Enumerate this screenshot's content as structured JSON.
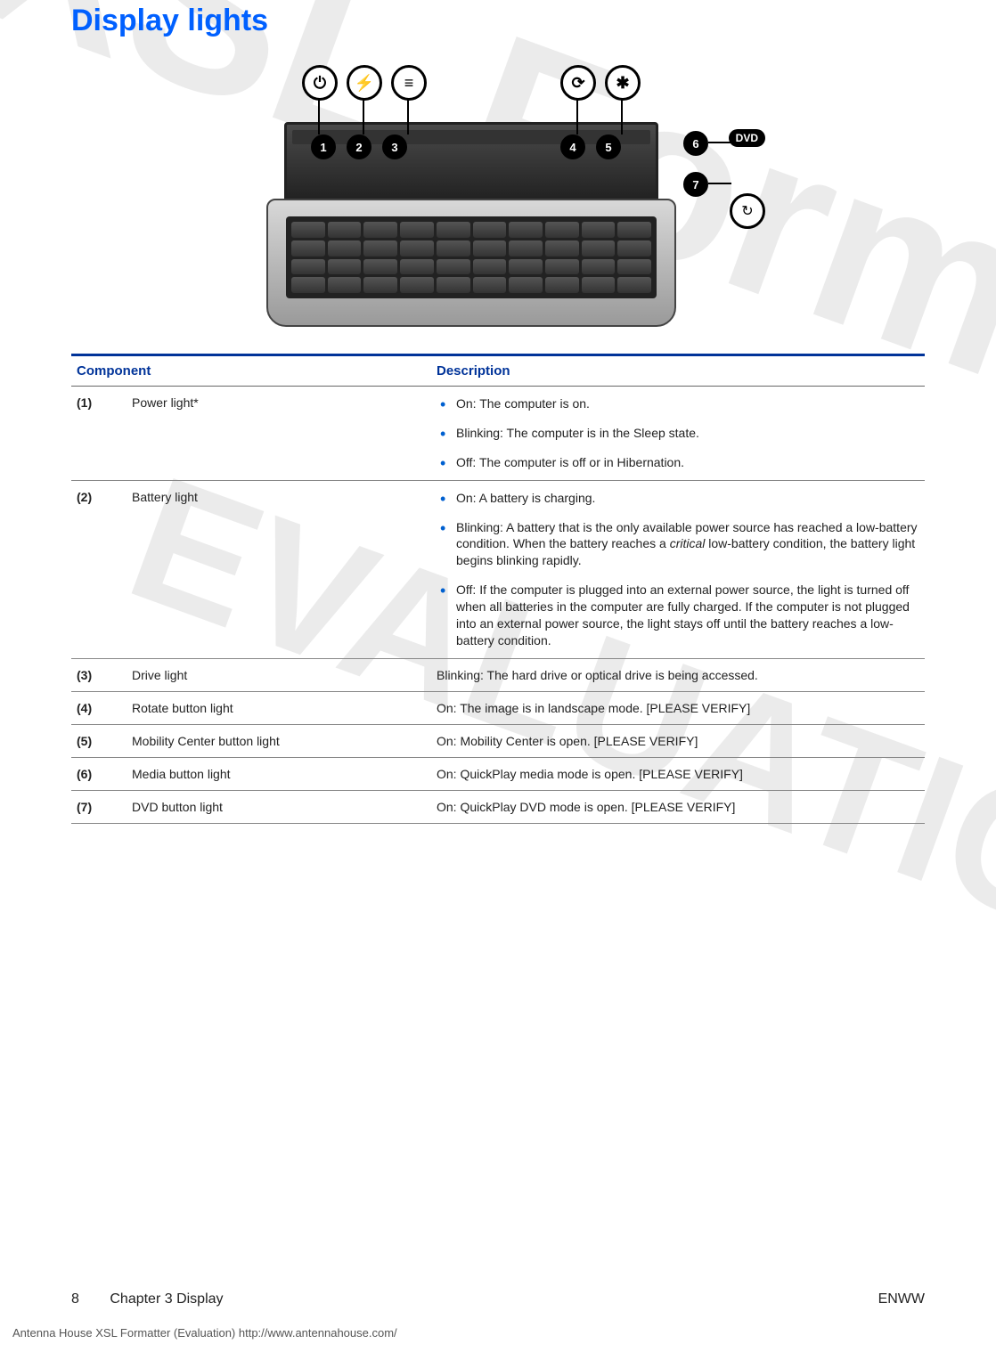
{
  "title": "Display lights",
  "watermarks": {
    "wm1": "XSL Formatter",
    "wm2": "EVALUATION"
  },
  "diagram": {
    "callouts": [
      "1",
      "2",
      "3",
      "4",
      "5",
      "6",
      "7"
    ],
    "icons": [
      "⏻",
      "⚡",
      "≡",
      "⟳",
      "✱"
    ],
    "badge": "DVD"
  },
  "table": {
    "headers": {
      "component": "Component",
      "description": "Description"
    },
    "rows": [
      {
        "num": "(1)",
        "name": "Power light*",
        "type": "list",
        "items": [
          "On: The computer is on.",
          "Blinking: The computer is in the Sleep state.",
          "Off: The computer is off or in Hibernation."
        ]
      },
      {
        "num": "(2)",
        "name": "Battery light",
        "type": "list",
        "items": [
          "On: A battery is charging.",
          "Blinking: A battery that is the only available power source has reached a low-battery condition. When the battery reaches a critical low-battery condition, the battery light begins blinking rapidly.",
          "Off: If the computer is plugged into an external power source, the light is turned off when all batteries in the computer are fully charged. If the computer is not plugged into an external power source, the light stays off until the battery reaches a low-battery condition."
        ]
      },
      {
        "num": "(3)",
        "name": "Drive light",
        "type": "text",
        "text": "Blinking: The hard drive or optical drive is being accessed."
      },
      {
        "num": "(4)",
        "name": "Rotate button light",
        "type": "text",
        "text": "On: The image is in landscape mode. [PLEASE VERIFY]"
      },
      {
        "num": "(5)",
        "name": "Mobility Center button light",
        "type": "text",
        "text": "On: Mobility Center is open. [PLEASE VERIFY]"
      },
      {
        "num": "(6)",
        "name": "Media button light",
        "type": "text",
        "text": "On: QuickPlay media mode is open. [PLEASE VERIFY]"
      },
      {
        "num": "(7)",
        "name": "DVD button light",
        "type": "text",
        "text": "On: QuickPlay DVD mode is open. [PLEASE VERIFY]"
      }
    ]
  },
  "footer": {
    "pageNum": "8",
    "chapter": "Chapter 3   Display",
    "lang": "ENWW"
  },
  "evalLine": "Antenna House XSL Formatter (Evaluation)  http://www.antennahouse.com/"
}
